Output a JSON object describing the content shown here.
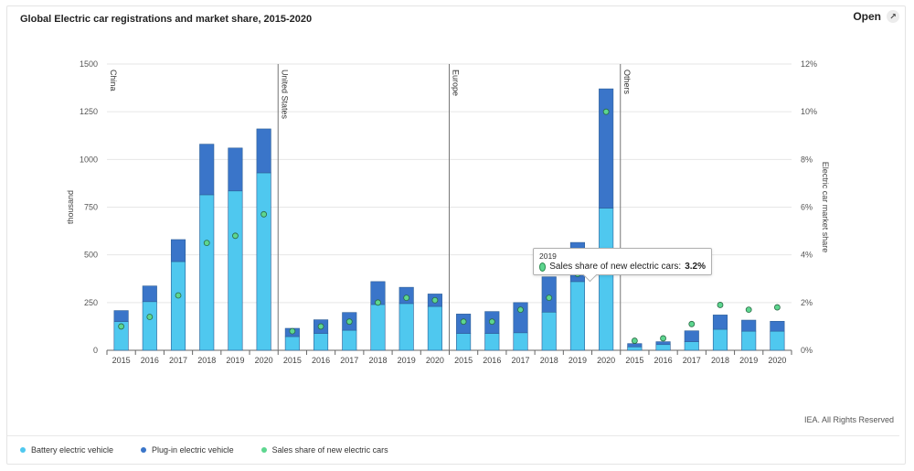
{
  "header": {
    "title": "Global Electric car registrations and market share, 2015-2020",
    "open_label": "Open",
    "open_icon": "expand-icon"
  },
  "footer": {
    "copyright": "IEA. All Rights Reserved"
  },
  "legend": [
    {
      "label": "Battery electric vehicle",
      "color": "#4fc8ef"
    },
    {
      "label": "Plug-in electric vehicle",
      "color": "#3a75c9"
    },
    {
      "label": "Sales share of new electric cars",
      "color": "#5dd68f"
    }
  ],
  "tooltip": {
    "year": "2019",
    "label": "Sales share of new electric cars:",
    "value": "3.2%"
  },
  "chart_data": {
    "type": "bar",
    "stacked": true,
    "ylabel": "thousand",
    "y2label": "Electric car market share",
    "ylim": [
      0,
      1500
    ],
    "y2lim": [
      0,
      12
    ],
    "yticks": [
      0,
      250,
      500,
      750,
      1000,
      1250,
      1500
    ],
    "y2ticks": [
      "0%",
      "2%",
      "4%",
      "6%",
      "8%",
      "10%",
      "12%"
    ],
    "grid": true,
    "legend_position": "bottom-left",
    "groups": [
      {
        "name": "China",
        "years": [
          "2015",
          "2016",
          "2017",
          "2018",
          "2019",
          "2020"
        ],
        "bev": [
          150,
          255,
          465,
          815,
          835,
          930
        ],
        "phev": [
          58,
          82,
          115,
          265,
          225,
          230
        ],
        "share": [
          1.0,
          1.4,
          2.3,
          4.5,
          4.8,
          5.7
        ]
      },
      {
        "name": "United States",
        "years": [
          "2015",
          "2016",
          "2017",
          "2018",
          "2019",
          "2020"
        ],
        "bev": [
          72,
          88,
          105,
          240,
          245,
          230
        ],
        "phev": [
          43,
          72,
          93,
          120,
          85,
          65
        ],
        "share": [
          0.8,
          1.0,
          1.2,
          2.0,
          2.2,
          2.1
        ]
      },
      {
        "name": "Europe",
        "years": [
          "2015",
          "2016",
          "2017",
          "2018",
          "2019",
          "2020"
        ],
        "bev": [
          88,
          88,
          92,
          200,
          360,
          745
        ],
        "phev": [
          102,
          115,
          158,
          185,
          205,
          625
        ],
        "share": [
          1.2,
          1.2,
          1.7,
          2.2,
          3.2,
          10.0
        ]
      },
      {
        "name": "Others",
        "years": [
          "2015",
          "2016",
          "2017",
          "2018",
          "2019",
          "2020"
        ],
        "bev": [
          18,
          30,
          45,
          110,
          100,
          100
        ],
        "phev": [
          17,
          15,
          57,
          75,
          58,
          52
        ],
        "share": [
          0.4,
          0.5,
          1.1,
          1.9,
          1.7,
          1.8
        ]
      }
    ]
  }
}
